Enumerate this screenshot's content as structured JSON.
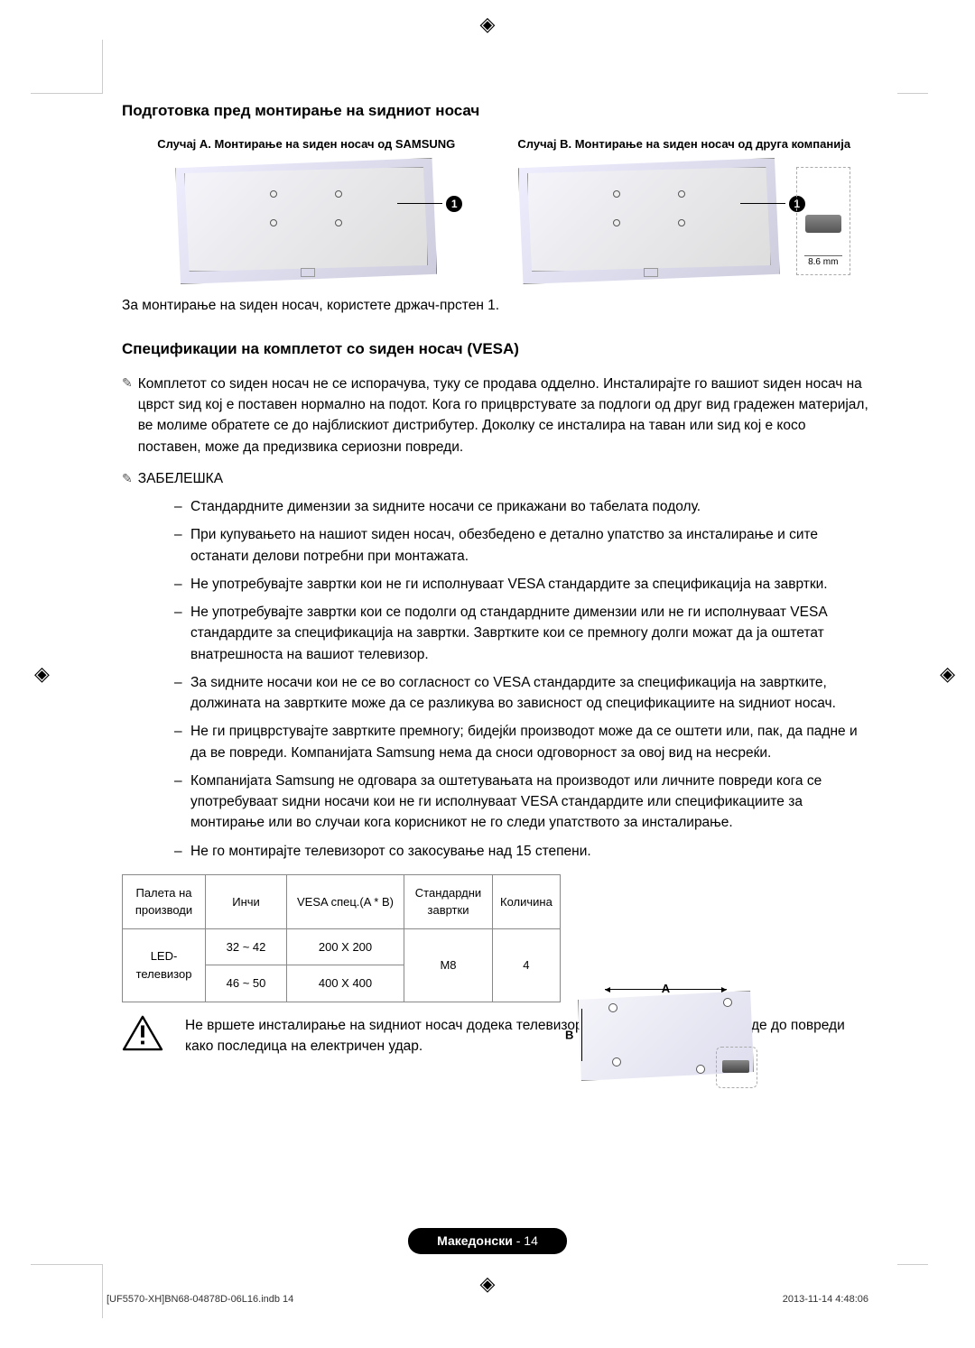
{
  "reg_glyph": "◈",
  "section1_title": "Подготовка пред монтирање на ѕидниот носач",
  "caseA_title": "Случај А. Монтирање на ѕиден носач од SAMSUNG",
  "caseB_title": "Случај B. Монтирање на ѕиден носач од друга компанија",
  "callout_num": "1",
  "bracket_dim": "8.6 mm",
  "lead_text": "За монтирање на ѕиден носач, користете држач-прстен 1.",
  "section2_title": "Спецификации на комплетот со ѕиден носач (VESA)",
  "para1": "Комплетот со ѕиден носач не се испорачува, туку се продава одделно. Инсталирајте го вашиот ѕиден носач на цврст ѕид кој е поставен нормално на подот. Кога го прицврстувате за подлоги од друг вид градежен материјал, ве молиме обратете се до најблискиот дистрибутер. Доколку се инсталира на таван или ѕид кој е косо поставен, може да предизвика сериозни повреди.",
  "note_label": "ЗАБЕЛЕШКА",
  "bullets": [
    "Стандардните димензии за ѕидните носачи се прикажани во табелата подолу.",
    "При купувањето на нашиот ѕиден носач, обезбедено е детално упатство за инсталирање и сите останати делови потребни при монтажата.",
    "Не употребувајте завртки кои не ги исполнуваат VESA стандардите за спецификација на завртки.",
    "Не употребувајте завртки кои се подолги од стандардните димензии или не ги исполнуваат VESA стандардите за спецификација на завртки. Завртките кои се премногу долги можат да ја оштетат внатрешноста на вашиот телевизор.",
    "За ѕидните носачи кои не се во согласност со VESA стандардите за спецификација на завртките, должината на завртките може да се разликува во зависност од спецификациите на ѕидниот носач.",
    "Не ги прицврстувајте завртките премногу; бидејќи производот може да се оштети или, пак, да падне и да ве повреди. Компанијата Samsung нема да сноси одговорност за овој вид на несреќи.",
    "Компанијата Samsung не одговара за оштетувањата на производот или личните повреди кога се употребуваат ѕидни носачи кои не ги исполнуваат VESA стандардите или спецификациите за монтирање или во случаи кога корисникот не го следи упатството за инсталирање.",
    "Не го монтирајте телевизорот со закосување над 15 степени."
  ],
  "table": {
    "headers": {
      "product": "Палета на производи",
      "inches": "Инчи",
      "vesa": "VESA спец.(A * B)",
      "screw": "Стандардни завртки",
      "qty": "Количина"
    },
    "product": "LED-телевизор",
    "rows": [
      {
        "inches": "32 ~ 42",
        "vesa": "200 X 200"
      },
      {
        "inches": "46 ~ 50",
        "vesa": "400 X 400"
      }
    ],
    "screw": "M8",
    "qty": "4"
  },
  "diagram": {
    "A": "A",
    "B": "B"
  },
  "warning_text": "Не вршете инсталирање на ѕидниот носач додека телевизорот е вклучен. Може да дојде до повреди како последица на електричен удар.",
  "footer": {
    "lang": "Македонски",
    "page": "14"
  },
  "print_meta": {
    "left": "[UF5570-XH]BN68-04878D-06L16.indb   14",
    "right": "2013-11-14   4:48:06"
  }
}
